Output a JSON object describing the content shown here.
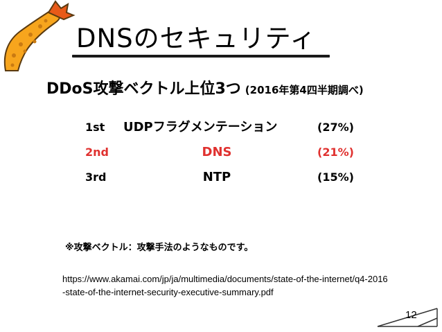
{
  "slide": {
    "title": "DNSのセキュリティ",
    "subtitle": "DDoS攻撃ベクトル上位3つ",
    "subtitle_note": "(2016年第4四半期調べ)",
    "ranking": [
      {
        "rank": "1st",
        "name": "UDPフラグメンテーション",
        "percent": "(27%)",
        "color": "#000000"
      },
      {
        "rank": "2nd",
        "name": "DNS",
        "percent": "(21%)",
        "color": "#e0312f"
      },
      {
        "rank": "3rd",
        "name": "NTP",
        "percent": "(15%)",
        "color": "#000000"
      }
    ],
    "footnote": "※攻撃ベクトル：攻撃手法のようなものです。",
    "source_url": "https://www.akamai.com/jp/ja/multimedia/documents/state-of-the-internet/q4-2016-state-of-the-internet-security-executive-summary.pdf",
    "page_number": "12"
  },
  "colors": {
    "highlight": "#e0312f",
    "logo_fill": "#f7a51d",
    "logo_tail": "#e85a18"
  },
  "icons": {
    "logo": "fried-shrimp-icon",
    "corner": "page-corner-flourish-icon"
  }
}
